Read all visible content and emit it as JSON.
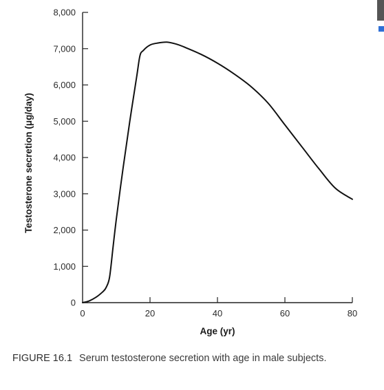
{
  "chart_data": {
    "type": "line",
    "title": "",
    "xlabel": "Age (yr)",
    "ylabel": "Testosterone secretion (μg/day)",
    "xlim": [
      0,
      80
    ],
    "ylim": [
      0,
      8000
    ],
    "x_ticks": [
      0,
      20,
      40,
      60,
      80
    ],
    "y_ticks": [
      0,
      1000,
      2000,
      3000,
      4000,
      5000,
      6000,
      7000,
      8000
    ],
    "x_tick_labels": [
      "0",
      "20",
      "40",
      "60",
      "80"
    ],
    "y_tick_labels": [
      "0",
      "1,000",
      "2,000",
      "3,000",
      "4,000",
      "5,000",
      "6,000",
      "7,000",
      "8,000"
    ],
    "grid": false,
    "series": [
      {
        "x": [
          0,
          2,
          4,
          6,
          7,
          8,
          9,
          10,
          12,
          14,
          16,
          17,
          18,
          20,
          22,
          25,
          28,
          30,
          35,
          40,
          45,
          50,
          55,
          60,
          65,
          70,
          75,
          80
        ],
        "y": [
          0,
          50,
          150,
          300,
          420,
          700,
          1500,
          2300,
          3700,
          5000,
          6200,
          6800,
          6950,
          7100,
          7150,
          7180,
          7120,
          7050,
          6850,
          6600,
          6300,
          5950,
          5500,
          4900,
          4300,
          3700,
          3150,
          2850
        ]
      }
    ],
    "colors": {
      "line": "#111111",
      "axis": "#222222"
    }
  },
  "caption": {
    "label": "FIGURE 16.1",
    "text": "Serum testosterone secretion with age in male subjects."
  }
}
